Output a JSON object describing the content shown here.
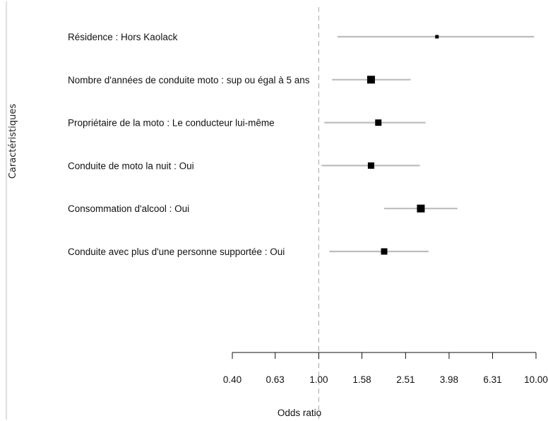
{
  "chart_data": {
    "type": "forest",
    "xlabel": "Odds ratio",
    "ylabel": "Caractéristiques",
    "x_scale": "log",
    "xlim": [
      0.4,
      10.0
    ],
    "ticks": [
      "0.40",
      "0.63",
      "1.00",
      "1.58",
      "2.51",
      "3.98",
      "6.31",
      "10.00"
    ],
    "tick_values": [
      0.4,
      0.63,
      1.0,
      1.58,
      2.51,
      3.98,
      6.31,
      10.0
    ],
    "reference_line": 1.0,
    "rows": [
      {
        "label": "Résidence : Hors Kaolack",
        "or": 3.5,
        "ci_low": 1.22,
        "ci_high": 9.8
      },
      {
        "label": "Nombre d'années de conduite moto : sup ou égal à 5 ans",
        "or": 1.74,
        "ci_low": 1.15,
        "ci_high": 2.65
      },
      {
        "label": "Propriétaire de la moto : Le conducteur lui-même",
        "or": 1.88,
        "ci_low": 1.06,
        "ci_high": 3.1
      },
      {
        "label": "Conduite de moto la nuit : Oui",
        "or": 1.74,
        "ci_low": 1.03,
        "ci_high": 2.92
      },
      {
        "label": "Consommation d'alcool : Oui",
        "or": 2.95,
        "ci_low": 2.0,
        "ci_high": 4.35
      },
      {
        "label": "Conduite avec plus d'une personne supportée : Oui",
        "or": 2.0,
        "ci_low": 1.12,
        "ci_high": 3.2
      }
    ]
  }
}
